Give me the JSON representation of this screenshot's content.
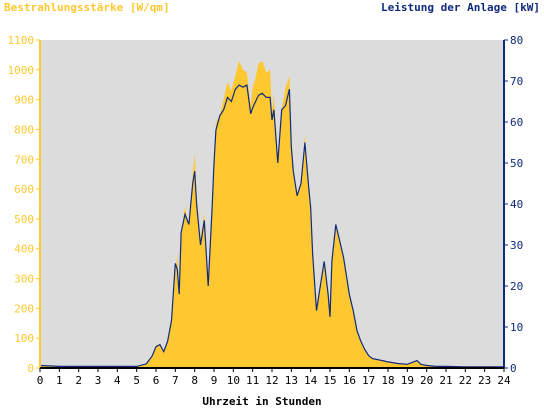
{
  "chart_data": {
    "type": "area",
    "title_left": "Bestrahlungsstärke [W/qm]",
    "title_right": "Leistung der Anlage [kW]",
    "xlabel": "Uhrzeit in Stunden",
    "xlim": [
      0,
      24
    ],
    "ylim_left": [
      0,
      1100
    ],
    "ylim_right": [
      0,
      80
    ],
    "x_ticks": [
      "0",
      "1",
      "2",
      "3",
      "4",
      "5",
      "6",
      "7",
      "8",
      "9",
      "10",
      "11",
      "12",
      "13",
      "14",
      "15",
      "16",
      "17",
      "18",
      "19",
      "20",
      "21",
      "22",
      "23",
      "24"
    ],
    "y_left_ticks": [
      "0",
      "100",
      "200",
      "300",
      "400",
      "500",
      "600",
      "700",
      "800",
      "900",
      "1000",
      "1100"
    ],
    "y_right_ticks": [
      "0",
      "10",
      "20",
      "30",
      "40",
      "50",
      "60",
      "70",
      "80"
    ],
    "grid": false,
    "series": [
      {
        "name": "Bestrahlungsstärke [W/qm]",
        "axis": "left",
        "color": "#ffc830",
        "x": [
          0,
          1,
          2,
          3,
          4,
          5,
          5.5,
          5.8,
          6.0,
          6.2,
          6.4,
          6.6,
          6.8,
          7.0,
          7.1,
          7.2,
          7.3,
          7.5,
          7.7,
          7.9,
          8.0,
          8.1,
          8.3,
          8.5,
          8.7,
          8.9,
          9.0,
          9.1,
          9.3,
          9.5,
          9.7,
          9.9,
          10.1,
          10.3,
          10.5,
          10.7,
          10.9,
          11.0,
          11.1,
          11.3,
          11.5,
          11.7,
          11.9,
          12.0,
          12.1,
          12.3,
          12.5,
          12.7,
          12.9,
          13.0,
          13.1,
          13.3,
          13.5,
          13.7,
          13.9,
          14.0,
          14.1,
          14.3,
          14.5,
          14.7,
          14.9,
          15.0,
          15.1,
          15.3,
          15.5,
          15.7,
          15.9,
          16.0,
          16.2,
          16.4,
          16.6,
          16.8,
          17.0,
          17.2,
          17.4,
          17.6,
          17.8,
          18.0,
          18.5,
          19.0,
          19.5,
          19.7,
          20.0,
          20.5,
          21,
          22,
          23,
          24
        ],
        "values": [
          8,
          6,
          5,
          5,
          6,
          5,
          15,
          40,
          75,
          80,
          55,
          90,
          160,
          320,
          380,
          250,
          450,
          540,
          480,
          650,
          720,
          580,
          430,
          520,
          280,
          550,
          680,
          820,
          850,
          900,
          960,
          930,
          980,
          1030,
          1000,
          990,
          880,
          940,
          960,
          1020,
          1030,
          990,
          1000,
          860,
          920,
          680,
          870,
          940,
          980,
          760,
          660,
          580,
          620,
          780,
          600,
          540,
          380,
          190,
          270,
          350,
          250,
          170,
          360,
          470,
          430,
          370,
          300,
          250,
          190,
          120,
          90,
          60,
          40,
          30,
          28,
          25,
          22,
          20,
          15,
          12,
          22,
          12,
          8,
          5,
          5,
          4,
          4,
          4
        ]
      },
      {
        "name": "Leistung der Anlage [kW]",
        "axis": "right",
        "color": "#102a7c",
        "x": [
          0,
          1,
          2,
          3,
          4,
          5,
          5.5,
          5.8,
          6.0,
          6.2,
          6.4,
          6.6,
          6.8,
          7.0,
          7.1,
          7.2,
          7.3,
          7.5,
          7.7,
          7.9,
          8.0,
          8.1,
          8.3,
          8.5,
          8.7,
          8.9,
          9.0,
          9.1,
          9.3,
          9.5,
          9.7,
          9.9,
          10.1,
          10.3,
          10.5,
          10.7,
          10.9,
          11.0,
          11.1,
          11.3,
          11.5,
          11.7,
          11.9,
          12.0,
          12.1,
          12.3,
          12.5,
          12.7,
          12.9,
          13.0,
          13.1,
          13.3,
          13.5,
          13.7,
          13.9,
          14.0,
          14.1,
          14.3,
          14.5,
          14.7,
          14.9,
          15.0,
          15.1,
          15.3,
          15.5,
          15.7,
          15.9,
          16.0,
          16.2,
          16.4,
          16.6,
          16.8,
          17.0,
          17.2,
          17.4,
          17.6,
          17.8,
          18.0,
          18.5,
          19.0,
          19.5,
          19.7,
          20.0,
          20.5,
          21,
          22,
          23,
          24
        ],
        "values": [
          0.6,
          0.4,
          0.4,
          0.4,
          0.4,
          0.4,
          1.0,
          2.9,
          5.2,
          5.7,
          4.0,
          6.5,
          11.6,
          25.5,
          24.0,
          18.0,
          33.0,
          37.5,
          35.0,
          45.0,
          48.0,
          40.0,
          30.0,
          36.0,
          20.0,
          39.0,
          50.0,
          58.0,
          61.5,
          63.0,
          66.0,
          65.0,
          68.0,
          69.0,
          68.5,
          69.0,
          62.0,
          63.5,
          64.5,
          66.5,
          67.0,
          66.0,
          66.0,
          60.5,
          63.0,
          50.0,
          63.0,
          64.0,
          68.0,
          54.0,
          48.0,
          42.0,
          45.0,
          55.0,
          44.0,
          39.0,
          28.0,
          14.0,
          20.0,
          26.0,
          18.0,
          12.5,
          26.0,
          35.0,
          31.0,
          27.0,
          21.0,
          18.0,
          14.0,
          9.0,
          6.5,
          4.5,
          3.0,
          2.3,
          2.1,
          1.9,
          1.7,
          1.5,
          1.1,
          0.9,
          1.8,
          0.9,
          0.6,
          0.4,
          0.4,
          0.3,
          0.3,
          0.3
        ]
      }
    ]
  }
}
